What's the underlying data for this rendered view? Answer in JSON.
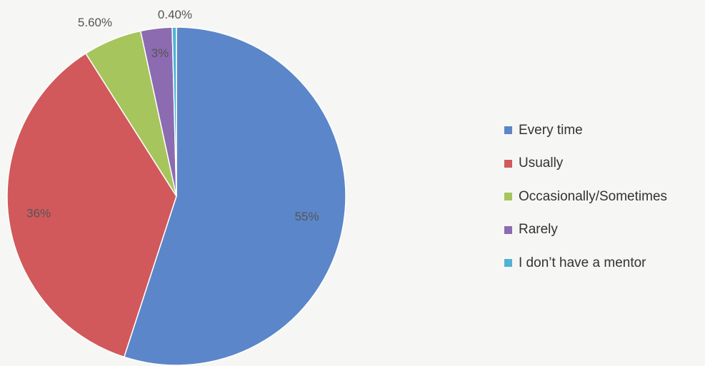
{
  "chart_data": {
    "type": "pie",
    "title": "",
    "start_angle_deg": 0,
    "direction": "clockwise",
    "legend_position": "right",
    "slices": [
      {
        "label": "Every time",
        "value": 55,
        "display": "55%",
        "color": "#5b86c9"
      },
      {
        "label": "Usually",
        "value": 36,
        "display": "36%",
        "color": "#d1595b"
      },
      {
        "label": "Occasionally/Sometimes",
        "value": 5.6,
        "display": "5.60%",
        "color": "#a6c55d"
      },
      {
        "label": "Rarely",
        "value": 3,
        "display": "3%",
        "color": "#8c6bb1"
      },
      {
        "label": "I don’t have a mentor",
        "value": 0.4,
        "display": "0.40%",
        "color": "#4fb3d3"
      }
    ]
  }
}
